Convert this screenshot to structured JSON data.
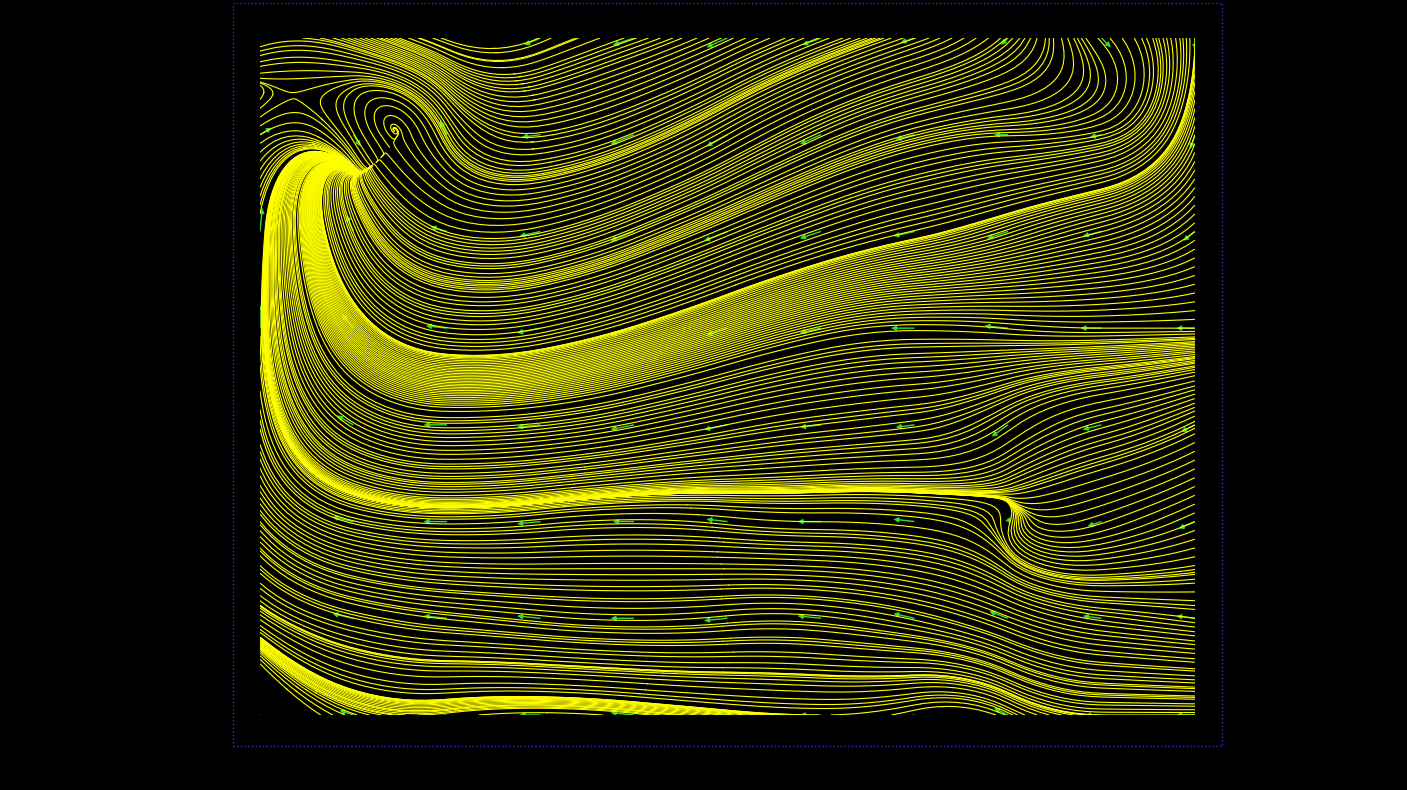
{
  "chart_data": {
    "type": "streamline",
    "color": "#ffff00",
    "tick_labels": false,
    "x": [
      0,
      1,
      2,
      3,
      4,
      5,
      6,
      7,
      8,
      9,
      10
    ],
    "y": [
      0,
      1,
      2,
      3,
      4,
      5,
      6,
      7
    ],
    "u": [
      [
        -0.3,
        -0.6,
        -0.8,
        -0.9,
        -1.0,
        -1.0,
        -0.9,
        -0.8,
        -0.6,
        -0.7,
        -0.8
      ],
      [
        -0.6,
        -0.9,
        -1.0,
        -1.0,
        -1.0,
        -1.0,
        -1.0,
        -0.9,
        -0.8,
        -0.8,
        -0.8
      ],
      [
        -0.5,
        -0.9,
        -1.0,
        -1.0,
        -0.9,
        -0.9,
        -1.0,
        -0.9,
        0.1,
        -0.6,
        -0.7
      ],
      [
        -0.2,
        -0.7,
        -1.0,
        -1.0,
        -1.0,
        -1.0,
        -0.9,
        -0.8,
        -0.7,
        -0.8,
        -0.6
      ],
      [
        0.0,
        -0.5,
        -0.9,
        -1.0,
        -1.0,
        -0.9,
        -0.9,
        -1.0,
        -1.0,
        -0.9,
        -0.8
      ],
      [
        0.1,
        -0.3,
        -0.7,
        -0.9,
        -1.0,
        -1.0,
        -0.9,
        -0.9,
        -0.9,
        -0.8,
        -0.5
      ],
      [
        0.5,
        0.3,
        -0.3,
        -0.8,
        -1.0,
        -0.9,
        -0.9,
        -0.8,
        -0.6,
        -0.5,
        -0.2
      ],
      [
        -0.6,
        -0.8,
        -0.6,
        -0.7,
        -0.9,
        -0.9,
        -0.8,
        -0.6,
        -0.3,
        0.4,
        0.0
      ]
    ],
    "v": [
      [
        0.5,
        0.2,
        -0.1,
        0.0,
        0.1,
        0.1,
        0.0,
        -0.2,
        0.3,
        0.0,
        0.0
      ],
      [
        0.4,
        0.2,
        0.1,
        0.1,
        0.0,
        -0.1,
        0.1,
        0.2,
        0.3,
        0.1,
        0.1
      ],
      [
        0.6,
        0.2,
        0.0,
        -0.1,
        0.0,
        0.1,
        0.0,
        0.1,
        0.2,
        -0.2,
        -0.3
      ],
      [
        0.9,
        0.4,
        0.0,
        -0.1,
        -0.2,
        -0.2,
        -0.1,
        -0.1,
        -0.5,
        -0.2,
        -0.3
      ],
      [
        1.0,
        0.6,
        0.1,
        -0.2,
        -0.3,
        -0.3,
        -0.2,
        0.0,
        0.1,
        0.0,
        0.0
      ],
      [
        1.0,
        0.7,
        0.2,
        -0.2,
        -0.4,
        -0.4,
        -0.3,
        -0.2,
        -0.3,
        -0.2,
        -0.4
      ],
      [
        0.3,
        -0.5,
        0.6,
        -0.1,
        -0.4,
        -0.5,
        -0.4,
        -0.2,
        0.0,
        -0.1,
        -0.6
      ],
      [
        -0.2,
        0.3,
        0.2,
        -0.3,
        -0.3,
        -0.4,
        -0.3,
        -0.2,
        -0.3,
        -0.4,
        -0.5
      ]
    ]
  }
}
